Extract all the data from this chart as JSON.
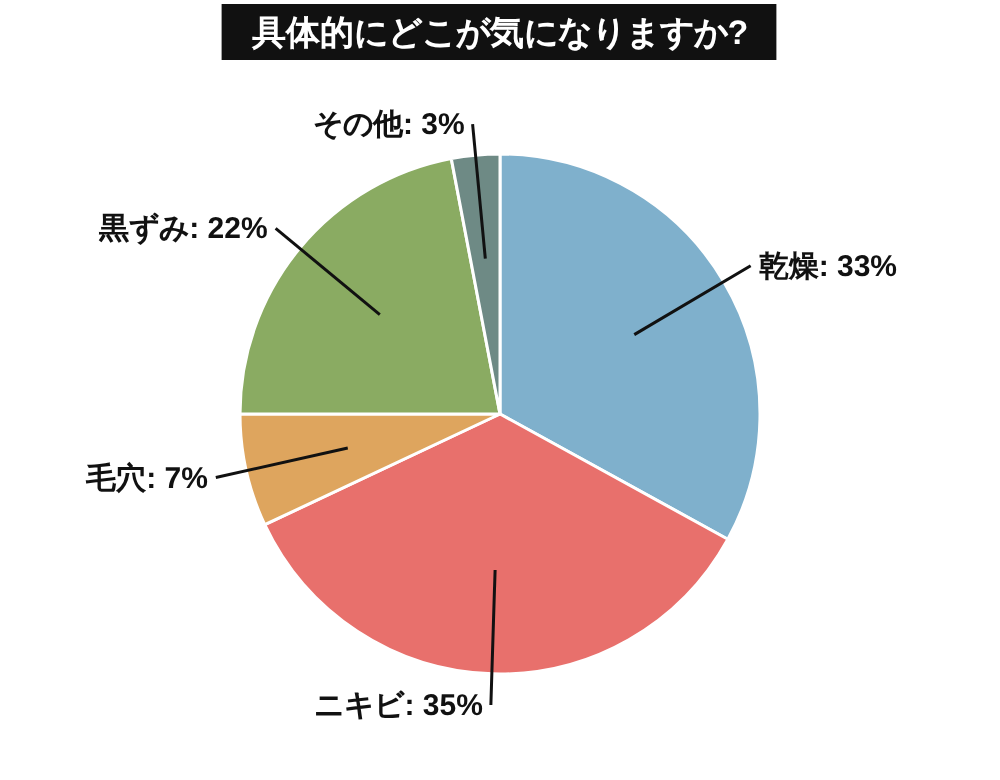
{
  "chart_data": {
    "type": "pie",
    "title": "具体的にどこが気になりますか?",
    "categories": [
      "乾燥",
      "ニキビ",
      "毛穴",
      "黒ずみ",
      "その他"
    ],
    "values": [
      33,
      35,
      7,
      22,
      3
    ],
    "value_labels": [
      "33%",
      "35%",
      "7%",
      "22%",
      "3%"
    ],
    "colors": [
      "#7fb0cc",
      "#e8706c",
      "#dea55e",
      "#8aab62",
      "#6e8a85"
    ]
  }
}
